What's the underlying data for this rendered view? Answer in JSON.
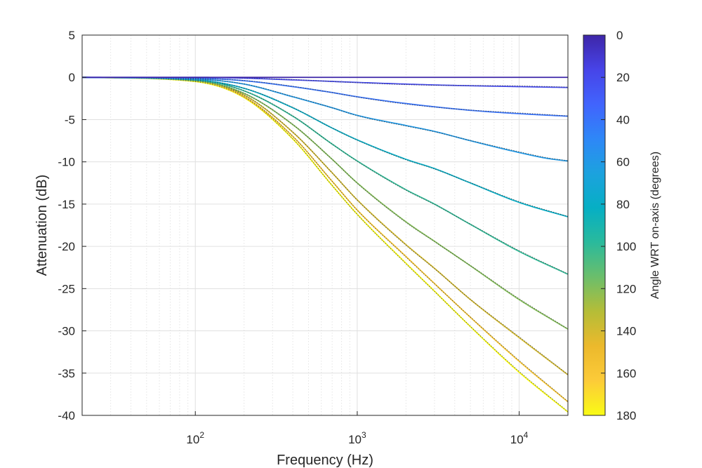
{
  "chart_data": {
    "type": "line",
    "title": "",
    "xlabel": "Frequency (Hz)",
    "ylabel": "Attenuation (dB)",
    "xscale": "log",
    "xlim": [
      20,
      20000
    ],
    "ylim": [
      -40,
      5
    ],
    "grid": true,
    "yticks": [
      "5",
      "0",
      "-5",
      "-10",
      "-15",
      "-20",
      "-25",
      "-30",
      "-35",
      "-40"
    ],
    "xticks": [
      {
        "base": "10",
        "exp": "2",
        "value": 100
      },
      {
        "base": "10",
        "exp": "3",
        "value": 1000
      },
      {
        "base": "10",
        "exp": "4",
        "value": 10000
      }
    ],
    "colorbar": {
      "label": "Angle WRT on-axis (degrees)",
      "range": [
        0,
        180
      ],
      "ticks": [
        "0",
        "20",
        "40",
        "60",
        "80",
        "100",
        "120",
        "140",
        "160",
        "180"
      ],
      "colormap": [
        "#3E26A8",
        "#4744E8",
        "#4164FD",
        "#2E87F7",
        "#1CA2DE",
        "#06AFC4",
        "#2ABA9C",
        "#6BBE6B",
        "#B5BD37",
        "#ECB92C",
        "#FCCB39",
        "#F9FB15"
      ]
    },
    "series": [
      {
        "name": "0°",
        "angle": 0,
        "x": [
          20,
          100,
          1000,
          10000,
          20000
        ],
        "y": [
          0,
          0,
          0,
          0,
          0
        ]
      },
      {
        "name": "20°",
        "angle": 20,
        "x": [
          20,
          100,
          200,
          400,
          1000,
          3000,
          10000,
          20000
        ],
        "y": [
          0,
          0,
          -0.1,
          -0.3,
          -0.6,
          -0.9,
          -1.1,
          -1.2
        ]
      },
      {
        "name": "40°",
        "angle": 40,
        "x": [
          20,
          100,
          200,
          400,
          700,
          1000,
          2000,
          5000,
          10000,
          20000
        ],
        "y": [
          0,
          -0.1,
          -0.4,
          -1.1,
          -1.8,
          -2.3,
          -3.1,
          -3.9,
          -4.3,
          -4.6
        ]
      },
      {
        "name": "60°",
        "angle": 60,
        "x": [
          20,
          100,
          200,
          400,
          700,
          1000,
          2000,
          3000,
          5000,
          10000,
          15000,
          20000
        ],
        "y": [
          0,
          -0.2,
          -0.8,
          -2.3,
          -3.6,
          -4.5,
          -5.7,
          -6.4,
          -7.5,
          -8.9,
          -9.6,
          -9.9
        ]
      },
      {
        "name": "80°",
        "angle": 80,
        "x": [
          20,
          100,
          200,
          400,
          700,
          1000,
          2000,
          3000,
          5000,
          10000,
          20000
        ],
        "y": [
          0,
          -0.3,
          -1.3,
          -3.6,
          -6.0,
          -7.4,
          -9.7,
          -10.8,
          -12.5,
          -14.8,
          -16.5
        ]
      },
      {
        "name": "100°",
        "angle": 100,
        "x": [
          20,
          100,
          200,
          400,
          700,
          1000,
          2000,
          3000,
          5000,
          10000,
          20000
        ],
        "y": [
          0,
          -0.3,
          -1.6,
          -4.6,
          -7.9,
          -9.9,
          -13.3,
          -15.0,
          -17.4,
          -20.6,
          -23.3
        ]
      },
      {
        "name": "120°",
        "angle": 120,
        "x": [
          20,
          100,
          200,
          400,
          700,
          1000,
          2000,
          3000,
          5000,
          10000,
          20000
        ],
        "y": [
          0,
          -0.4,
          -1.9,
          -5.6,
          -9.7,
          -12.5,
          -17.1,
          -19.4,
          -22.3,
          -26.3,
          -29.8
        ]
      },
      {
        "name": "140°",
        "angle": 140,
        "x": [
          20,
          100,
          200,
          400,
          700,
          1000,
          2000,
          3000,
          5000,
          10000,
          20000
        ],
        "y": [
          0,
          -0.4,
          -2.1,
          -6.5,
          -11.3,
          -14.5,
          -19.8,
          -22.6,
          -26.3,
          -30.8,
          -35.2
        ]
      },
      {
        "name": "160°",
        "angle": 160,
        "x": [
          20,
          100,
          200,
          400,
          700,
          1000,
          2000,
          3000,
          5000,
          10000,
          20000
        ],
        "y": [
          0,
          -0.4,
          -2.3,
          -7.0,
          -12.3,
          -15.7,
          -21.2,
          -24.4,
          -28.4,
          -33.6,
          -38.4
        ]
      },
      {
        "name": "180°",
        "angle": 180,
        "x": [
          20,
          100,
          200,
          400,
          700,
          1000,
          2000,
          3000,
          5000,
          10000,
          20000
        ],
        "y": [
          0,
          -0.5,
          -2.4,
          -7.3,
          -12.8,
          -16.2,
          -22.0,
          -25.3,
          -29.5,
          -34.9,
          -39.6
        ]
      }
    ]
  }
}
